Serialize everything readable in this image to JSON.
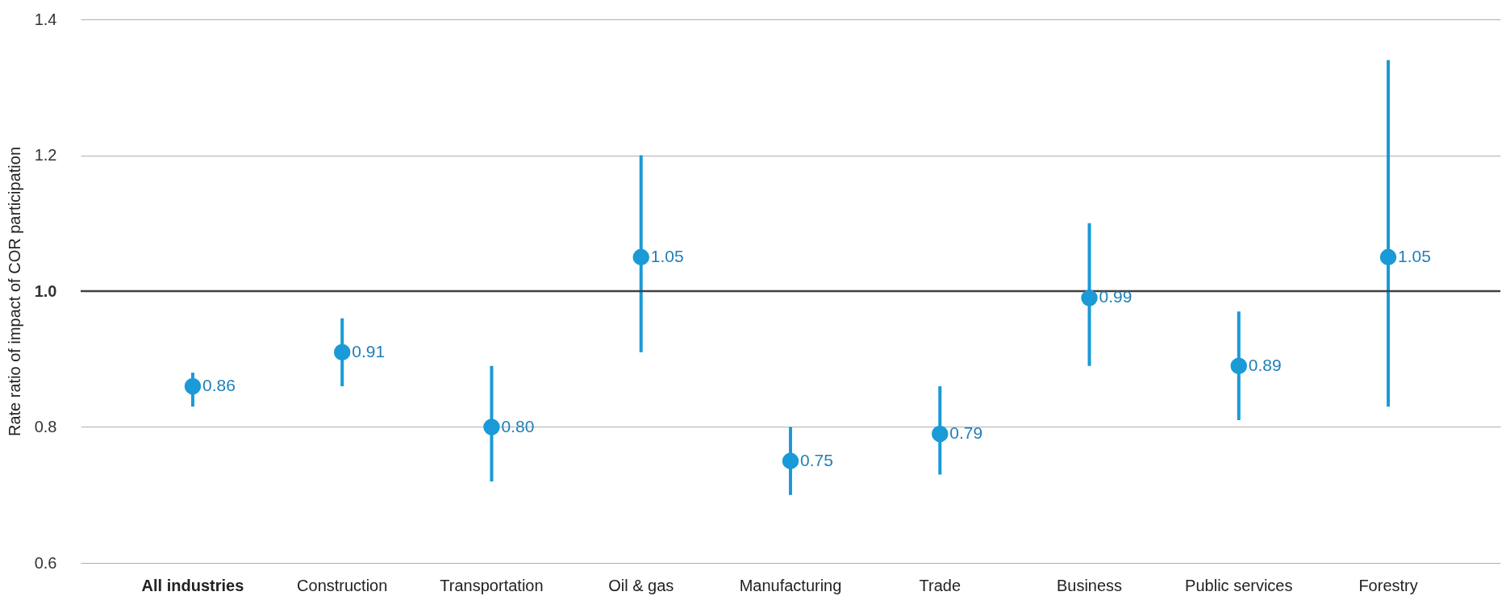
{
  "chart_data": {
    "type": "scatter",
    "ylabel": "Rate ratio of impact of COR participation",
    "categories": [
      "All industries",
      "Construction",
      "Transportation",
      "Oil & gas",
      "Manufacturing",
      "Trade",
      "Business",
      "Public services",
      "Forestry"
    ],
    "values": [
      0.86,
      0.91,
      0.8,
      1.05,
      0.75,
      0.79,
      0.99,
      0.89,
      1.05
    ],
    "errors": [
      [
        0.83,
        0.88
      ],
      [
        0.86,
        0.96
      ],
      [
        0.72,
        0.89
      ],
      [
        0.91,
        1.2
      ],
      [
        0.7,
        0.8
      ],
      [
        0.73,
        0.86
      ],
      [
        0.89,
        1.1
      ],
      [
        0.81,
        0.97
      ],
      [
        0.83,
        1.34
      ]
    ],
    "value_labels": [
      "0.86",
      "0.91",
      "0.80",
      "1.05",
      "0.75",
      "0.79",
      "0.99",
      "0.89",
      "1.05"
    ],
    "color": "#1a9ad6",
    "marker": "circle",
    "data_labels": true,
    "ylim": [
      0.6,
      1.4
    ],
    "yticks": [
      0.6,
      0.8,
      {
        "value": 1.0,
        "label": "1.0"
      },
      1.2,
      1.4
    ],
    "grid": "y",
    "ref_lines": [
      {
        "axis": "y",
        "value": 1.0,
        "color": "#404040"
      }
    ]
  }
}
